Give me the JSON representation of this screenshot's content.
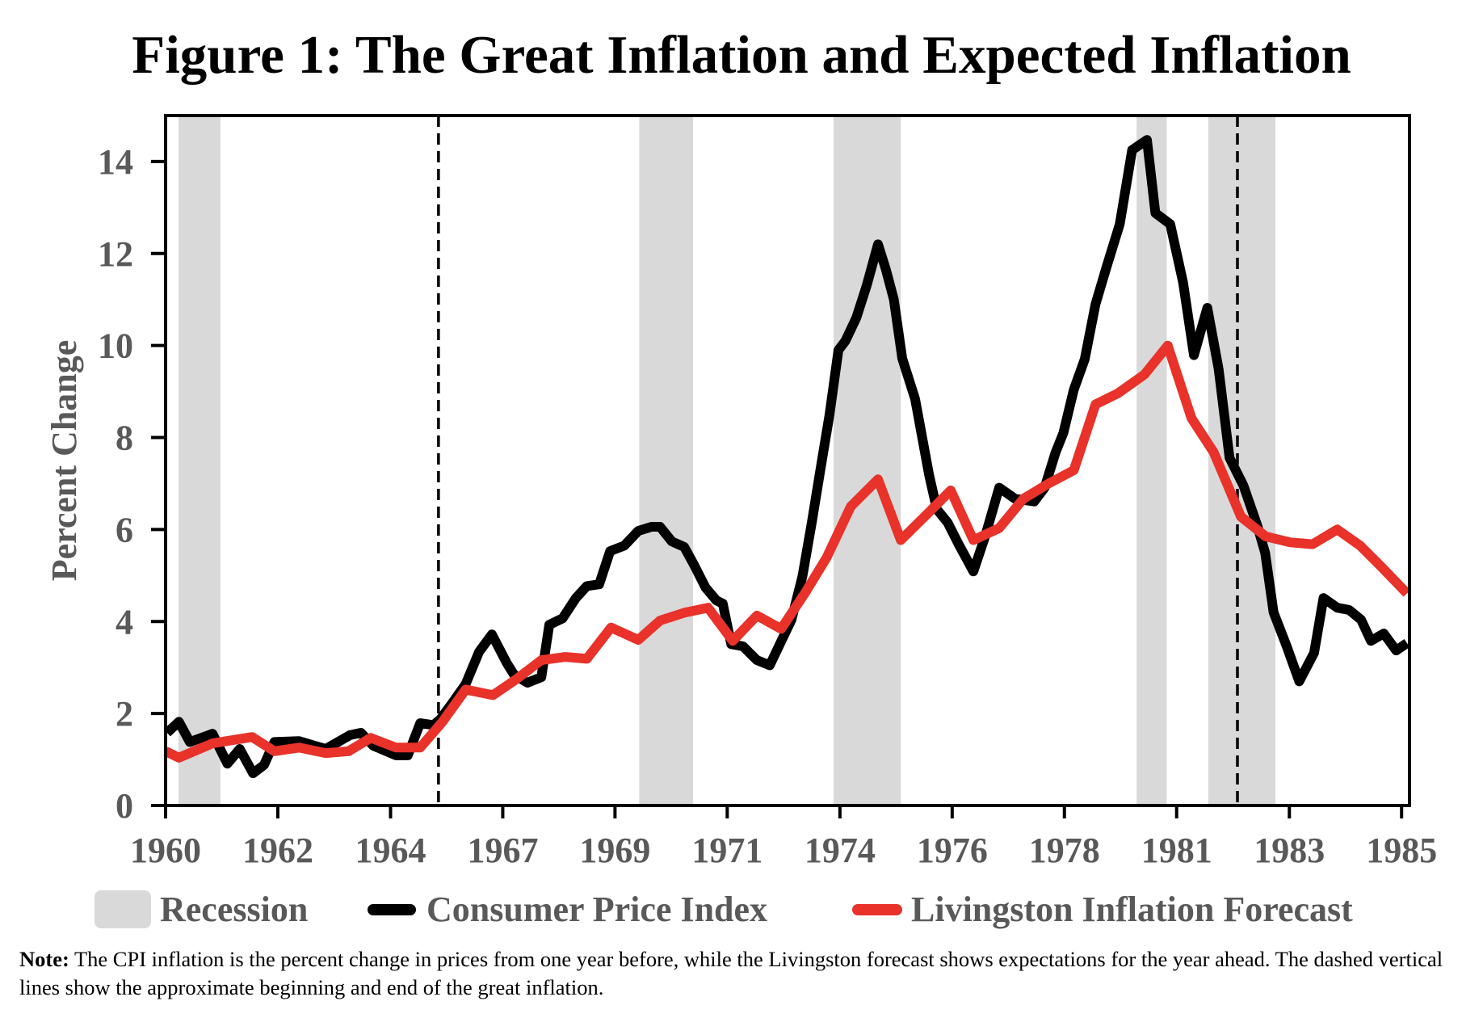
{
  "chart_data": {
    "type": "line",
    "title": "Figure 1: The Great Inflation and Expected Inflation",
    "xlabel": "",
    "ylabel": "Percent Change",
    "xlim": [
      1960,
      1985.16
    ],
    "ylim": [
      0,
      15
    ],
    "grid": false,
    "x_tick_labels": [
      "1960",
      "1962",
      "1964",
      "1967",
      "1969",
      "1971",
      "1974",
      "1976",
      "1978",
      "1981",
      "1983",
      "1985"
    ],
    "x_tick_positions": [
      1960,
      1962.27,
      1964.55,
      1966.82,
      1969.09,
      1971.36,
      1973.64,
      1975.91,
      1978.18,
      1980.45,
      1982.73,
      1985
    ],
    "y_ticks": [
      0,
      2,
      4,
      6,
      8,
      10,
      12,
      14
    ],
    "legend_position": "bottom",
    "recessions": [
      {
        "start": 1960.26,
        "end": 1961.11
      },
      {
        "start": 1969.58,
        "end": 1970.67
      },
      {
        "start": 1973.51,
        "end": 1974.87
      },
      {
        "start": 1979.64,
        "end": 1980.25
      },
      {
        "start": 1981.09,
        "end": 1982.45
      }
    ],
    "great_inflation_markers": [
      1965.52,
      1981.68
    ],
    "legend": [
      {
        "label": "Recession",
        "kind": "area",
        "color": "#d9d9d9"
      },
      {
        "label": "Consumer Price Index",
        "kind": "line",
        "color": "#000000"
      },
      {
        "label": "Livingston Inflation Forecast",
        "kind": "line",
        "color": "#e8322a"
      }
    ],
    "series": [
      {
        "name": "Consumer Price Index",
        "color": "#000000",
        "x": [
          1960.03,
          1960.27,
          1960.49,
          1960.95,
          1961.25,
          1961.5,
          1961.77,
          1961.99,
          1962.2,
          1962.7,
          1963.24,
          1963.73,
          1963.95,
          1964.2,
          1964.66,
          1964.9,
          1965.15,
          1965.42,
          1965.56,
          1965.8,
          1966.07,
          1966.34,
          1966.6,
          1966.9,
          1967.05,
          1967.32,
          1967.6,
          1967.76,
          1968.03,
          1968.3,
          1968.52,
          1968.77,
          1968.99,
          1969.28,
          1969.56,
          1969.83,
          1970.0,
          1970.24,
          1970.49,
          1970.7,
          1970.92,
          1971.14,
          1971.27,
          1971.44,
          1971.68,
          1971.96,
          1972.22,
          1972.66,
          1972.88,
          1973.07,
          1973.26,
          1973.43,
          1973.61,
          1973.75,
          1973.97,
          1974.18,
          1974.41,
          1974.57,
          1974.73,
          1974.9,
          1975.16,
          1975.44,
          1975.6,
          1975.82,
          1976.04,
          1976.34,
          1976.58,
          1976.86,
          1977.18,
          1977.57,
          1977.78,
          1978.0,
          1978.16,
          1978.37,
          1978.59,
          1978.81,
          1979.03,
          1979.3,
          1979.55,
          1979.85,
          1980.02,
          1980.32,
          1980.58,
          1980.8,
          1981.07,
          1981.3,
          1981.52,
          1981.8,
          1982.08,
          1982.24,
          1982.41,
          1982.68,
          1982.93,
          1983.23,
          1983.42,
          1983.7,
          1983.94,
          1984.18,
          1984.38,
          1984.64,
          1984.89,
          1985.11
        ],
        "values": [
          1.58,
          1.82,
          1.38,
          1.56,
          0.91,
          1.23,
          0.7,
          0.88,
          1.38,
          1.4,
          1.23,
          1.53,
          1.58,
          1.3,
          1.09,
          1.09,
          1.79,
          1.75,
          1.88,
          2.23,
          2.64,
          3.34,
          3.72,
          3.1,
          2.84,
          2.67,
          2.79,
          3.93,
          4.07,
          4.51,
          4.77,
          4.81,
          5.53,
          5.65,
          5.97,
          6.06,
          6.06,
          5.74,
          5.62,
          5.21,
          4.74,
          4.46,
          4.39,
          3.51,
          3.46,
          3.16,
          3.05,
          4.04,
          4.98,
          6.15,
          7.4,
          8.5,
          9.9,
          10.1,
          10.6,
          11.3,
          12.2,
          11.65,
          11.0,
          9.72,
          8.84,
          7.2,
          6.44,
          6.15,
          5.68,
          5.09,
          5.86,
          6.91,
          6.67,
          6.61,
          6.91,
          7.67,
          8.1,
          9.04,
          9.7,
          10.9,
          11.7,
          12.64,
          14.25,
          14.47,
          12.88,
          12.64,
          11.37,
          9.79,
          10.82,
          9.49,
          7.56,
          6.96,
          6.09,
          5.49,
          4.2,
          3.45,
          2.7,
          3.32,
          4.51,
          4.3,
          4.25,
          4.04,
          3.58,
          3.74,
          3.37,
          3.53
        ]
      },
      {
        "name": "Livingston Inflation Forecast",
        "color": "#e8322a",
        "x": [
          1960.0,
          1960.27,
          1960.95,
          1961.75,
          1962.2,
          1962.7,
          1963.24,
          1963.7,
          1964.15,
          1964.66,
          1965.15,
          1965.6,
          1966.07,
          1966.62,
          1967.1,
          1967.6,
          1968.09,
          1968.52,
          1969.01,
          1969.56,
          1970.0,
          1970.49,
          1970.97,
          1971.47,
          1971.96,
          1972.45,
          1972.94,
          1973.37,
          1973.86,
          1974.41,
          1974.87,
          1975.37,
          1975.88,
          1976.34,
          1976.86,
          1977.35,
          1977.86,
          1978.37,
          1978.81,
          1979.26,
          1979.8,
          1980.27,
          1980.75,
          1981.2,
          1981.75,
          1982.25,
          1982.75,
          1983.2,
          1983.7,
          1984.16,
          1984.6,
          1985.11
        ],
        "values": [
          1.18,
          1.04,
          1.35,
          1.49,
          1.18,
          1.26,
          1.14,
          1.18,
          1.47,
          1.26,
          1.26,
          1.82,
          2.52,
          2.4,
          2.75,
          3.16,
          3.23,
          3.19,
          3.87,
          3.6,
          4.02,
          4.19,
          4.3,
          3.58,
          4.13,
          3.84,
          4.63,
          5.39,
          6.5,
          7.09,
          5.77,
          6.3,
          6.85,
          5.77,
          6.03,
          6.67,
          7.0,
          7.29,
          8.72,
          8.96,
          9.37,
          10.0,
          8.42,
          7.68,
          6.28,
          5.85,
          5.72,
          5.68,
          6.0,
          5.65,
          5.18,
          4.61
        ]
      }
    ]
  },
  "note": {
    "label": "Note:",
    "text": " The CPI inflation is the percent change in prices from one year before, while the Livingston forecast shows expectations for the year ahead. The dashed vertical lines show the approximate beginning and end of the great inflation."
  }
}
